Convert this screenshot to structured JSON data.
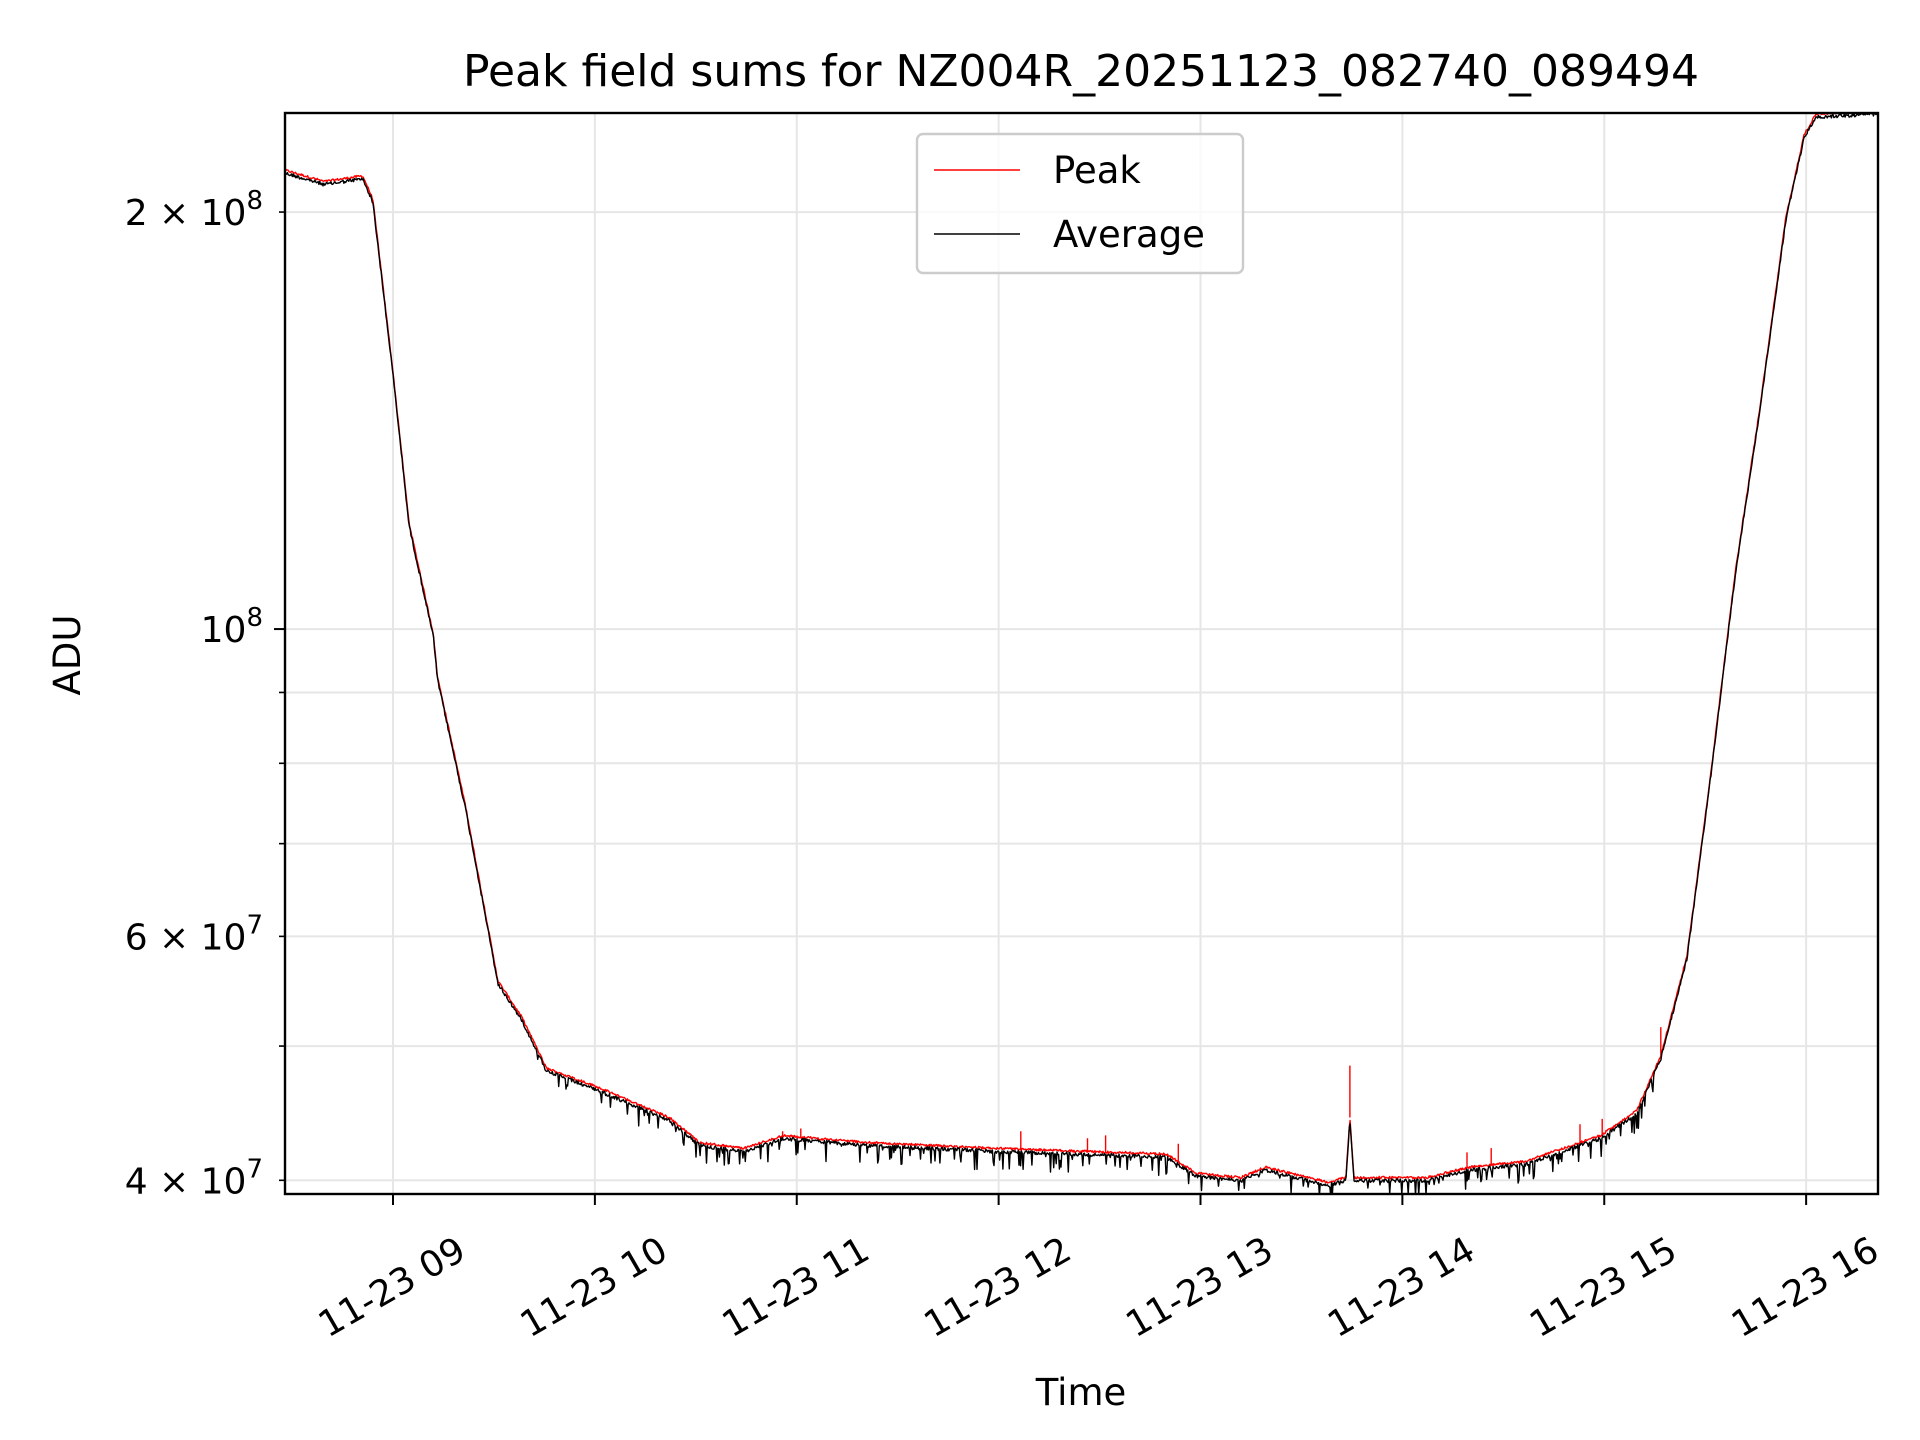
{
  "chart_data": {
    "type": "line",
    "title": "Peak field sums for NZ004R_20251123_082740_089494",
    "xlabel": "Time",
    "ylabel": "ADU",
    "x_units": "hours of day on 11-23",
    "xlim": [
      8.465,
      16.356
    ],
    "ylim": [
      39100000,
      235800000
    ],
    "yscale": "log",
    "grid": "both",
    "legend_placement": "upper-center",
    "xticks": [
      {
        "value": 9,
        "label": "11-23 09"
      },
      {
        "value": 10,
        "label": "11-23 10"
      },
      {
        "value": 11,
        "label": "11-23 11"
      },
      {
        "value": 12,
        "label": "11-23 12"
      },
      {
        "value": 13,
        "label": "11-23 13"
      },
      {
        "value": 14,
        "label": "11-23 14"
      },
      {
        "value": 15,
        "label": "11-23 15"
      },
      {
        "value": 16,
        "label": "11-23 16"
      }
    ],
    "yticks_major": [
      {
        "value": 100000000,
        "base": "10",
        "exp": "8"
      }
    ],
    "yticks_minor_labeled": [
      {
        "value": 200000000,
        "base": "2 × 10",
        "exp": "8"
      },
      {
        "value": 60000000,
        "base": "6 × 10",
        "exp": "7"
      },
      {
        "value": 40000000,
        "base": "4 × 10",
        "exp": "7"
      }
    ],
    "yticks_minor": [
      40000000,
      50000000,
      60000000,
      70000000,
      80000000,
      90000000,
      200000000
    ],
    "series": [
      {
        "name": "Average",
        "color": "#000000",
        "points": [
          [
            8.466,
            214000000
          ],
          [
            8.66,
            210000000
          ],
          [
            8.85,
            212000000
          ],
          [
            8.9,
            204000000
          ],
          [
            9.0,
            153000000
          ],
          [
            9.08,
            119000000
          ],
          [
            9.2,
            99000000
          ],
          [
            9.22,
            92300000
          ],
          [
            9.36,
            74300000
          ],
          [
            9.52,
            55600000
          ],
          [
            9.64,
            52300000
          ],
          [
            9.76,
            48100000
          ],
          [
            10.0,
            46700000
          ],
          [
            10.37,
            44300000
          ],
          [
            10.52,
            42500000
          ],
          [
            10.74,
            42100000
          ],
          [
            10.93,
            43000000
          ],
          [
            11.36,
            42500000
          ],
          [
            11.97,
            42100000
          ],
          [
            12.83,
            41700000
          ],
          [
            12.98,
            40400000
          ],
          [
            13.2,
            40100000
          ],
          [
            13.32,
            40800000
          ],
          [
            13.63,
            39800000
          ],
          [
            13.72,
            40100000
          ],
          [
            13.74,
            44400000
          ],
          [
            13.76,
            40100000
          ],
          [
            14.12,
            40100000
          ],
          [
            14.33,
            40800000
          ],
          [
            14.61,
            41200000
          ],
          [
            14.98,
            43000000
          ],
          [
            15.16,
            44800000
          ],
          [
            15.28,
            49100000
          ],
          [
            15.41,
            58000000
          ],
          [
            15.53,
            79000000
          ],
          [
            15.65,
            110000000
          ],
          [
            15.77,
            144000000
          ],
          [
            15.9,
            198000000
          ],
          [
            15.99,
            227000000
          ],
          [
            16.05,
            235000000
          ],
          [
            16.33,
            236000000
          ]
        ]
      },
      {
        "name": "Peak",
        "color": "#ff0000",
        "follows": "Average",
        "spikes": [
          [
            10.93,
            43400000
          ],
          [
            11.02,
            43600000
          ],
          [
            12.11,
            43400000
          ],
          [
            12.44,
            42900000
          ],
          [
            12.53,
            43100000
          ],
          [
            12.89,
            42500000
          ],
          [
            13.74,
            48400000
          ],
          [
            14.32,
            41900000
          ],
          [
            14.44,
            42200000
          ],
          [
            14.88,
            43900000
          ],
          [
            14.99,
            44300000
          ],
          [
            15.28,
            51600000
          ]
        ]
      }
    ],
    "legend": [
      {
        "label": "Peak",
        "color": "#ff0000"
      },
      {
        "label": "Average",
        "color": "#000000"
      }
    ]
  }
}
